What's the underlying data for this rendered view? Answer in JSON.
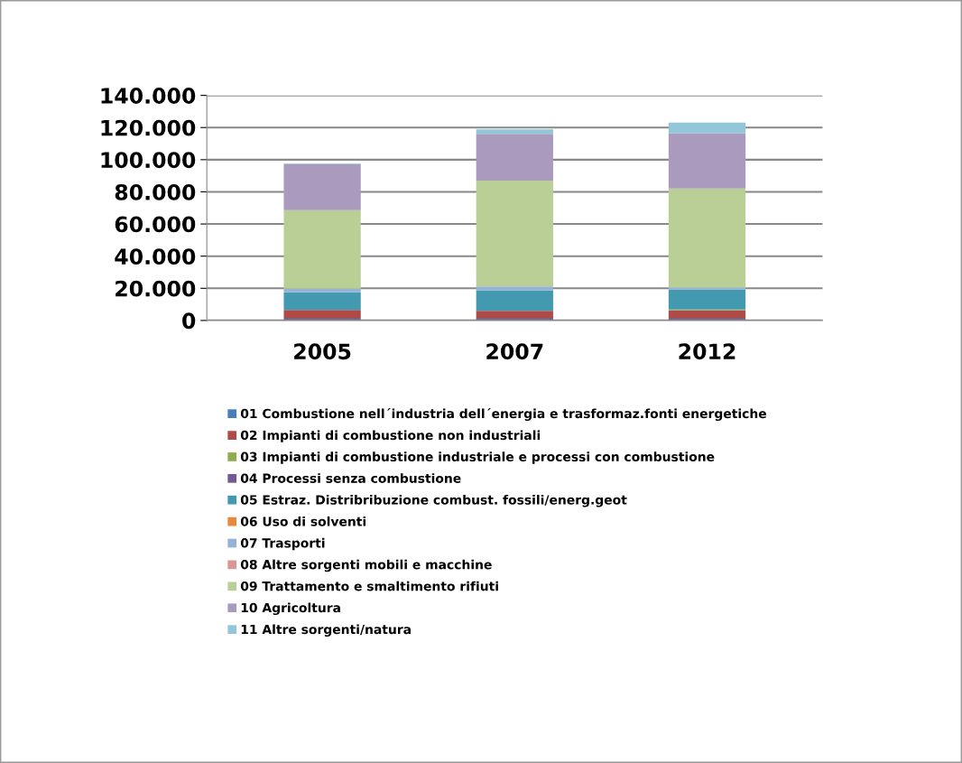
{
  "chart_data": {
    "type": "bar",
    "stacked": true,
    "categories": [
      "2005",
      "2007",
      "2012"
    ],
    "series": [
      {
        "name": "01 Combustione nell´industria dell´energia e trasformaz.fonti energetiche",
        "color": "#4a7ebb",
        "values": [
          1000,
          1000,
          1000
        ]
      },
      {
        "name": "02 Impianti di combustione non industriali",
        "color": "#b04a47",
        "values": [
          5600,
          5000,
          5200
        ]
      },
      {
        "name": "03 Impianti di combustione industriale e processi con combustione",
        "color": "#8fad4f",
        "values": [
          0,
          0,
          600
        ]
      },
      {
        "name": "04 Processi senza combustione",
        "color": "#735a96",
        "values": [
          0,
          0,
          0
        ]
      },
      {
        "name": "05 Estraz. Distribribuzione combust. fossili/energ.geot",
        "color": "#4299b0",
        "values": [
          10900,
          12800,
          12400
        ]
      },
      {
        "name": "06 Uso di solventi",
        "color": "#e9873c",
        "values": [
          0,
          0,
          0
        ]
      },
      {
        "name": "07 Trasporti",
        "color": "#95b3d7",
        "values": [
          2300,
          2300,
          1300
        ]
      },
      {
        "name": "08 Altre sorgenti mobili e macchine",
        "color": "#d99694",
        "values": [
          0,
          0,
          0
        ]
      },
      {
        "name": "09 Trattamento e smaltimento rifiuti",
        "color": "#bacf96",
        "values": [
          48800,
          65900,
          61600
        ]
      },
      {
        "name": "10 Agricoltura",
        "color": "#aa9bbe",
        "values": [
          28700,
          29100,
          34400
        ]
      },
      {
        "name": "11 Altre sorgenti/natura",
        "color": "#93c6d8",
        "values": [
          300,
          2800,
          6600
        ]
      }
    ],
    "ylim": [
      0,
      140000
    ],
    "yticks": [
      {
        "value": 0,
        "label": "0"
      },
      {
        "value": 20000,
        "label": "20.000"
      },
      {
        "value": 40000,
        "label": "40.000"
      },
      {
        "value": 60000,
        "label": "60.000"
      },
      {
        "value": 80000,
        "label": "80.000"
      },
      {
        "value": 100000,
        "label": "100.000"
      },
      {
        "value": 120000,
        "label": "120.000"
      },
      {
        "value": 140000,
        "label": "140.000"
      }
    ],
    "grid": "y",
    "legend": "bottom"
  }
}
